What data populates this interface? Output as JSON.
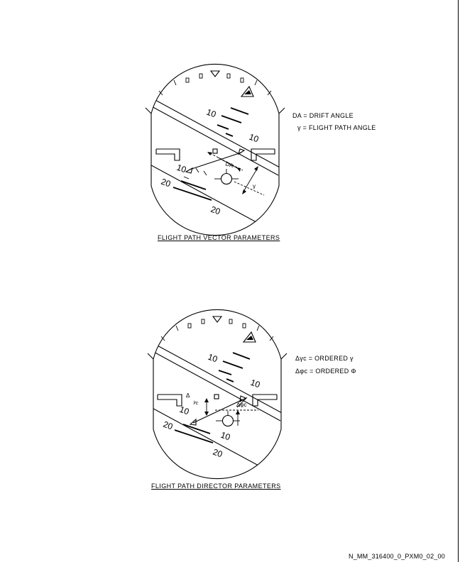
{
  "figure_vector": {
    "pitch_labels": [
      "10",
      "10",
      "10",
      "20",
      "20"
    ],
    "drift_label": "DA",
    "legend": [
      {
        "symbol": "DA",
        "text": "= DRIFT ANGLE"
      },
      {
        "symbol": "γ",
        "text": "= FLIGHT PATH ANGLE"
      }
    ],
    "caption": "FLIGHT PATH VECTOR PARAMETERS"
  },
  "figure_director": {
    "pitch_labels": [
      "10",
      "10",
      "10",
      "10",
      "20",
      "20"
    ],
    "legend": [
      {
        "symbol": "Δγc",
        "text": "= ORDERED γ"
      },
      {
        "symbol": "Δφc",
        "text": "= ORDERED Φ"
      }
    ],
    "caption": "FLIGHT PATH DIRECTOR PARAMETERS"
  },
  "footer": {
    "document_id": "N_MM_316400_0_PXM0_02_00"
  }
}
